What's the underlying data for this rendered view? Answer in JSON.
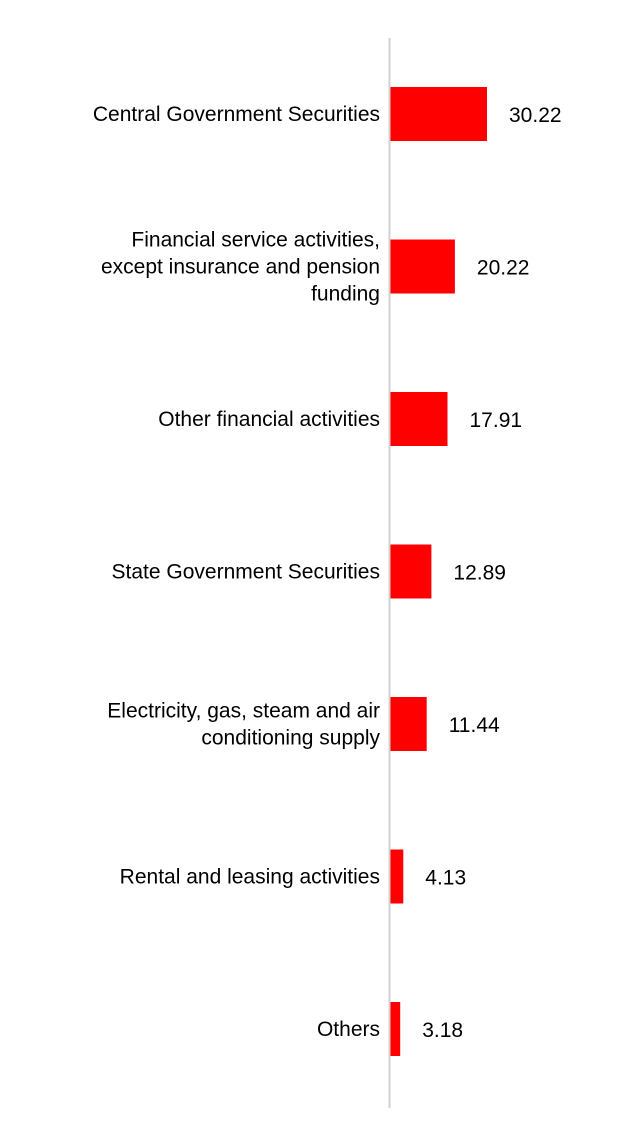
{
  "colors": {
    "bar": "#ff0000",
    "axis": "#d0d0d0",
    "text": "#000000",
    "background": "#ffffff"
  },
  "chart_data": {
    "type": "bar",
    "orientation": "horizontal",
    "title": "",
    "xlabel": "",
    "ylabel": "",
    "grid": false,
    "legend": "none",
    "xlim": [
      0,
      30.22
    ],
    "categories": [
      [
        "Central Government Securities"
      ],
      [
        "Financial service activities,",
        "except insurance and pension",
        "funding"
      ],
      [
        "Other financial activities"
      ],
      [
        "State Government Securities"
      ],
      [
        "Electricity, gas, steam and air",
        "conditioning supply"
      ],
      [
        "Rental and leasing activities"
      ],
      [
        "Others"
      ]
    ],
    "values": [
      30.22,
      20.22,
      17.91,
      12.89,
      11.44,
      4.13,
      3.18
    ],
    "value_labels": [
      "30.22",
      "20.22",
      "17.91",
      "12.89",
      "11.44",
      "4.13",
      "3.18"
    ]
  }
}
